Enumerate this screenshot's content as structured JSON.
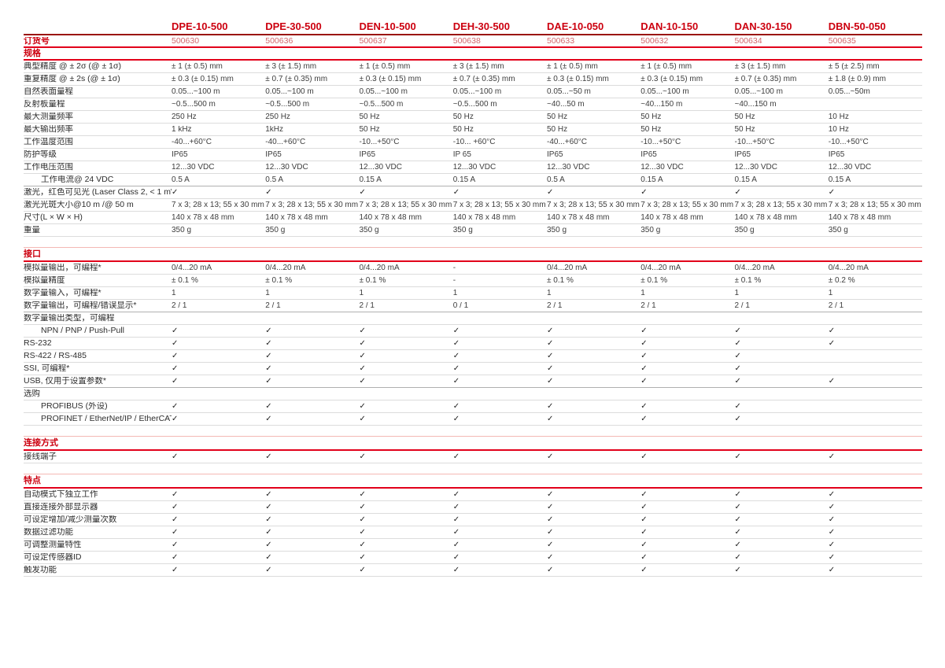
{
  "page": {
    "order_label": "订货号",
    "check_glyph": "✓",
    "colors": {
      "accent_red": "#cc000f",
      "rule_red": "#e2001a",
      "rule_dark_red": "#9b150c",
      "rule_salmon": "#f4b8b4",
      "order_number_red": "#d4656b",
      "row_divider": "#dcdcdc",
      "text": "#3d3d3d"
    },
    "products": [
      {
        "name": "DPE-10-500",
        "order_no": "500630"
      },
      {
        "name": "DPE-30-500",
        "order_no": "500636"
      },
      {
        "name": "DEN-10-500",
        "order_no": "500637"
      },
      {
        "name": "DEH-30-500",
        "order_no": "500638"
      },
      {
        "name": "DAE-10-050",
        "order_no": "500633"
      },
      {
        "name": "DAN-10-150",
        "order_no": "500632"
      },
      {
        "name": "DAN-30-150",
        "order_no": "500634"
      },
      {
        "name": "DBN-50-050",
        "order_no": "500635"
      }
    ],
    "sections": [
      {
        "title": "规格",
        "rows": [
          {
            "label": "典型精度 @ ± 2σ (@ ± 1σ)",
            "values": [
              "± 1 (± 0.5) mm",
              "± 3 (± 1.5) mm",
              "± 1 (± 0.5) mm",
              "± 3 (± 1.5) mm",
              "± 1 (± 0.5) mm",
              "± 1 (± 0.5) mm",
              "± 3 (± 1.5) mm",
              "± 5 (± 2.5) mm"
            ]
          },
          {
            "label": "重复精度 @ ± 2s (@ ± 1σ)",
            "values": [
              "± 0.3 (± 0.15) mm",
              "± 0.7 (± 0.35) mm",
              "± 0.3 (± 0.15) mm",
              "± 0.7 (± 0.35) mm",
              "± 0.3 (± 0.15) mm",
              "± 0.3 (± 0.15) mm",
              "± 0.7 (± 0.35) mm",
              "± 1.8 (± 0.9) mm"
            ]
          },
          {
            "label": "自然表面量程",
            "values": [
              "0.05...~100 m",
              "0.05...~100 m",
              "0.05...~100 m",
              "0.05...~100 m",
              "0.05...~50 m",
              "0.05...~100 m",
              "0.05...~100 m",
              "0.05...~50m"
            ]
          },
          {
            "label": "反射板量程",
            "values": [
              "~0.5...500 m",
              "~0.5...500 m",
              "~0.5...500 m",
              "~0.5...500 m",
              "~40...50 m",
              "~40...150 m",
              "~40...150 m",
              ""
            ]
          },
          {
            "label": "最大测量频率",
            "values": [
              "250 Hz",
              "250 Hz",
              "50 Hz",
              "50 Hz",
              "50 Hz",
              "50 Hz",
              "50 Hz",
              "10 Hz"
            ]
          },
          {
            "label": "最大输出频率",
            "values": [
              "1 kHz",
              "1kHz",
              "50 Hz",
              "50 Hz",
              "50 Hz",
              "50 Hz",
              "50 Hz",
              "10 Hz"
            ]
          },
          {
            "label": "工作温度范围",
            "values": [
              "-40...+60°C",
              "-40...+60°C",
              "-10...+50°C",
              "-10... +60°C",
              "-40...+60°C",
              "-10...+50°C",
              "-10...+50°C",
              "-10...+50°C"
            ]
          },
          {
            "label": "防护等级",
            "values": [
              "IP65",
              "IP65",
              "IP65",
              "IP 65",
              "IP65",
              "IP65",
              "IP65",
              "IP65"
            ]
          },
          {
            "label": "工作电压范围",
            "values": [
              "12...30 VDC",
              "12...30 VDC",
              "12...30 VDC",
              "12...30 VDC",
              "12...30 VDC",
              "12...30 VDC",
              "12...30 VDC",
              "12...30 VDC"
            ]
          },
          {
            "label": "工作电流@ 24 VDC",
            "indent": true,
            "strong": true,
            "values": [
              "0.5 A",
              "0.5 A",
              "0.15 A",
              "0.15 A",
              "0.5 A",
              "0.15 A",
              "0.15 A",
              "0.15 A"
            ]
          },
          {
            "label": "激光，红色可见光 (Laser Class 2, < 1 mW)",
            "values": [
              "✓",
              "✓",
              "✓",
              "✓",
              "✓",
              "✓",
              "✓",
              "✓"
            ]
          },
          {
            "label": "激光光斑大小@10 m /@ 50 m",
            "values": [
              "7 x 3; 28 x 13; 55 x 30 mm",
              "7 x 3; 28 x 13; 55 x 30 mm",
              "7 x 3; 28 x 13; 55 x 30 mm",
              "7 x 3; 28 x 13; 55 x 30 mm",
              "7 x 3; 28 x 13; 55 x 30 mm",
              "7 x 3; 28 x 13; 55 x 30 mm",
              "7 x 3; 28 x 13; 55 x 30 mm",
              "7 x 3; 28 x 13; 55 x 30 mm"
            ]
          },
          {
            "label": "尺寸(L × W × H)",
            "values": [
              "140 x 78 x 48 mm",
              "140 x 78 x 48 mm",
              "140 x 78 x 48 mm",
              "140 x 78 x 48 mm",
              "140 x 78 x 48 mm",
              "140 x 78 x 48 mm",
              "140 x 78 x 48 mm",
              "140 x 78 x 48 mm"
            ]
          },
          {
            "label": "重量",
            "values": [
              "350 g",
              "350 g",
              "350 g",
              "350 g",
              "350 g",
              "350 g",
              "350 g",
              "350 g"
            ]
          }
        ]
      },
      {
        "title": "接口",
        "rows": [
          {
            "label": "模拟量输出，可编程*",
            "values": [
              "0/4...20 mA",
              "0/4...20 mA",
              "0/4...20 mA",
              "-",
              "0/4...20 mA",
              "0/4...20 mA",
              "0/4...20 mA",
              "0/4...20 mA"
            ]
          },
          {
            "label": "模拟量精度",
            "values": [
              "± 0.1 %",
              "± 0.1 %",
              "± 0.1 %",
              "-",
              "± 0.1 %",
              "± 0.1 %",
              "± 0.1 %",
              "± 0.2 %"
            ]
          },
          {
            "label": "数字量输入，可编程*",
            "values": [
              "1",
              "1",
              "1",
              "1",
              "1",
              "1",
              "1",
              "1"
            ]
          },
          {
            "label": "数字量输出，可编程/错误显示*",
            "strong": true,
            "values": [
              "2 / 1",
              "2 / 1",
              "2 / 1",
              "0 / 1",
              "2 / 1",
              "2 / 1",
              "2 / 1",
              "2 / 1"
            ]
          },
          {
            "label": "数字量输出类型，可编程",
            "values": [
              "",
              "",
              "",
              "",
              "",
              "",
              "",
              ""
            ]
          },
          {
            "label": "NPN / PNP / Push-Pull",
            "indent": true,
            "values": [
              "✓",
              "✓",
              "✓",
              "✓",
              "✓",
              "✓",
              "✓",
              "✓"
            ]
          },
          {
            "label": "RS-232",
            "values": [
              "✓",
              "✓",
              "✓",
              "✓",
              "✓",
              "✓",
              "✓",
              "✓"
            ]
          },
          {
            "label": "RS-422 / RS-485",
            "values": [
              "✓",
              "✓",
              "✓",
              "✓",
              "✓",
              "✓",
              "✓",
              ""
            ]
          },
          {
            "label": "SSI, 可编程*",
            "values": [
              "✓",
              "✓",
              "✓",
              "✓",
              "✓",
              "✓",
              "✓",
              ""
            ]
          },
          {
            "label": "USB, 仅用于设置参数*",
            "strong": true,
            "values": [
              "✓",
              "✓",
              "✓",
              "✓",
              "✓",
              "✓",
              "✓",
              "✓"
            ]
          },
          {
            "label": "选购",
            "values": [
              "",
              "",
              "",
              "",
              "",
              "",
              "",
              ""
            ]
          },
          {
            "label": "PROFIBUS (外设)",
            "indent": true,
            "values": [
              "✓",
              "✓",
              "✓",
              "✓",
              "✓",
              "✓",
              "✓",
              ""
            ]
          },
          {
            "label": "PROFINET / EtherNet/IP / EtherCAT",
            "indent": true,
            "values": [
              "✓",
              "✓",
              "✓",
              "✓",
              "✓",
              "✓",
              "✓",
              ""
            ]
          }
        ]
      },
      {
        "title": "连接方式",
        "rows": [
          {
            "label": "接线端子",
            "values": [
              "✓",
              "✓",
              "✓",
              "✓",
              "✓",
              "✓",
              "✓",
              "✓"
            ]
          }
        ]
      },
      {
        "title": "特点",
        "rows": [
          {
            "label": "自动模式下独立工作",
            "values": [
              "✓",
              "✓",
              "✓",
              "✓",
              "✓",
              "✓",
              "✓",
              "✓"
            ]
          },
          {
            "label": "直接连接外部显示器",
            "values": [
              "✓",
              "✓",
              "✓",
              "✓",
              "✓",
              "✓",
              "✓",
              "✓"
            ]
          },
          {
            "label": "可设定增加/减少测量次数",
            "values": [
              "✓",
              "✓",
              "✓",
              "✓",
              "✓",
              "✓",
              "✓",
              "✓"
            ]
          },
          {
            "label": "数据过滤功能",
            "values": [
              "✓",
              "✓",
              "✓",
              "✓",
              "✓",
              "✓",
              "✓",
              "✓"
            ]
          },
          {
            "label": "可调整测量特性",
            "values": [
              "✓",
              "✓",
              "✓",
              "✓",
              "✓",
              "✓",
              "✓",
              "✓"
            ]
          },
          {
            "label": "可设定传感器ID",
            "values": [
              "✓",
              "✓",
              "✓",
              "✓",
              "✓",
              "✓",
              "✓",
              "✓"
            ]
          },
          {
            "label": "触发功能",
            "values": [
              "✓",
              "✓",
              "✓",
              "✓",
              "✓",
              "✓",
              "✓",
              "✓"
            ]
          }
        ]
      }
    ]
  }
}
